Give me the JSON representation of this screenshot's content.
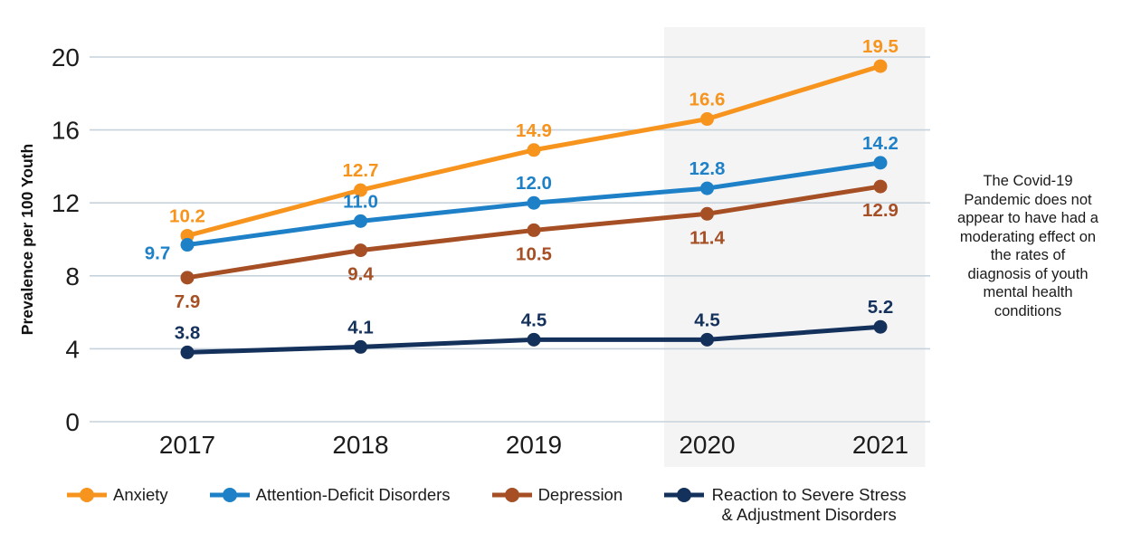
{
  "figure": {
    "background": "#ffffff",
    "axis_text_color": "#1c1c1c",
    "gridline_color": "#c6d2dc"
  },
  "chart_data": {
    "type": "line",
    "title": "",
    "xlabel": "",
    "ylabel": "Prevalence per 100 Youth",
    "categories": [
      "2017",
      "2018",
      "2019",
      "2020",
      "2021"
    ],
    "yticks": [
      0,
      4,
      8,
      12,
      16,
      20
    ],
    "ylim": [
      0,
      20
    ],
    "grid": true,
    "legend_position": "bottom",
    "highlight_band": {
      "categories": [
        "2020",
        "2021"
      ],
      "color": "#f4f4f5"
    },
    "series": [
      {
        "name": "Anxiety",
        "color": "#F7941E",
        "values": [
          10.2,
          12.7,
          14.9,
          16.6,
          19.5
        ],
        "labels": [
          "10.2",
          "12.7",
          "14.9",
          "16.6",
          "19.5"
        ],
        "label_placement": [
          "above",
          "above",
          "above",
          "above",
          "above"
        ]
      },
      {
        "name": "Attention-Deficit Disorders",
        "color": "#1E81C8",
        "values": [
          9.7,
          11.0,
          12.0,
          12.8,
          14.2
        ],
        "labels": [
          "9.7",
          "11.0",
          "12.0",
          "12.8",
          "14.2"
        ],
        "label_placement": [
          "left-below",
          "above",
          "above",
          "above",
          "above"
        ]
      },
      {
        "name": "Depression",
        "color": "#A64F25",
        "values": [
          7.9,
          9.4,
          10.5,
          11.4,
          12.9
        ],
        "labels": [
          "7.9",
          "9.4",
          "10.5",
          "11.4",
          "12.9"
        ],
        "label_placement": [
          "below",
          "below",
          "below",
          "below",
          "below"
        ]
      },
      {
        "name": "Reaction to Severe Stress & Adjustment Disorders",
        "color": "#14315C",
        "values": [
          3.8,
          4.1,
          4.5,
          4.5,
          5.2
        ],
        "labels": [
          "3.8",
          "4.1",
          "4.5",
          "4.5",
          "5.2"
        ],
        "label_placement": [
          "above",
          "above",
          "above",
          "above",
          "above"
        ]
      }
    ],
    "annotation": {
      "text": "The Covid-19 Pandemic does not appear to have had a moderating effect on the rates of diagnosis of youth mental health conditions",
      "lines": [
        "The Covid-19",
        "Pandemic does not",
        "appear to have had a",
        "moderating effect on",
        "the rates of",
        "diagnosis of youth",
        "mental health",
        "conditions"
      ]
    }
  }
}
